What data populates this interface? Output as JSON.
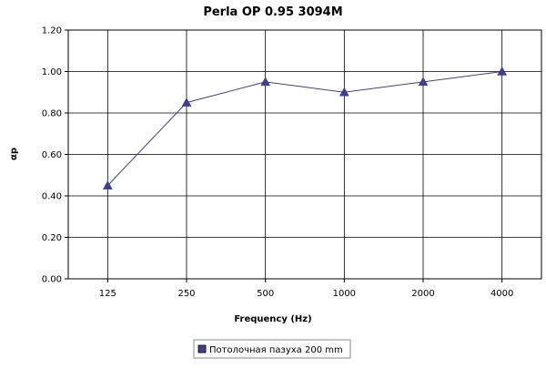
{
  "chart_data": {
    "type": "line",
    "title": "Perla OP 0.95 3094M",
    "xlabel": "Frequency (Hz)",
    "ylabel": "αp",
    "categories": [
      "125",
      "250",
      "500",
      "1000",
      "2000",
      "4000"
    ],
    "ylim": [
      0,
      1.2
    ],
    "yticks": [
      "0.00",
      "0.20",
      "0.40",
      "0.60",
      "0.80",
      "1.00",
      "1.20"
    ],
    "grid": true,
    "legend_position": "bottom",
    "series": [
      {
        "name": "Потолочная пазуха 200 mm",
        "values": [
          0.45,
          0.85,
          0.95,
          0.9,
          0.95,
          1.0
        ],
        "color": "#3f3f8f",
        "marker": "triangle"
      }
    ]
  }
}
